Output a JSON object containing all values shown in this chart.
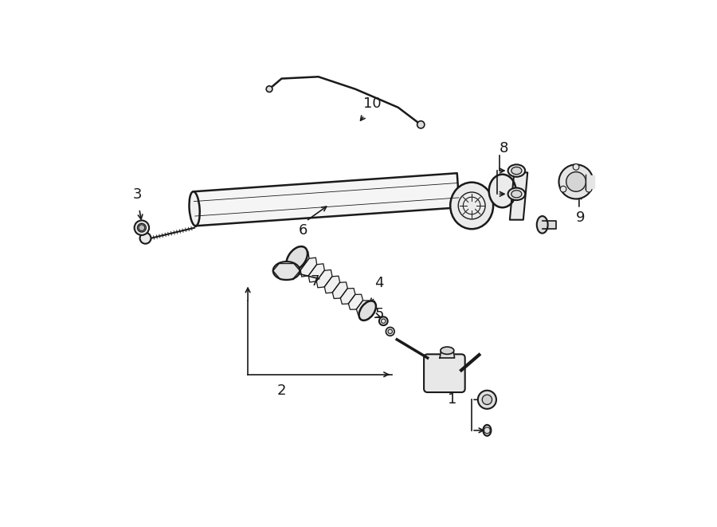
{
  "bg_color": "#ffffff",
  "line_color": "#1a1a1a",
  "fig_width": 9.0,
  "fig_height": 6.61,
  "font_size": 13
}
